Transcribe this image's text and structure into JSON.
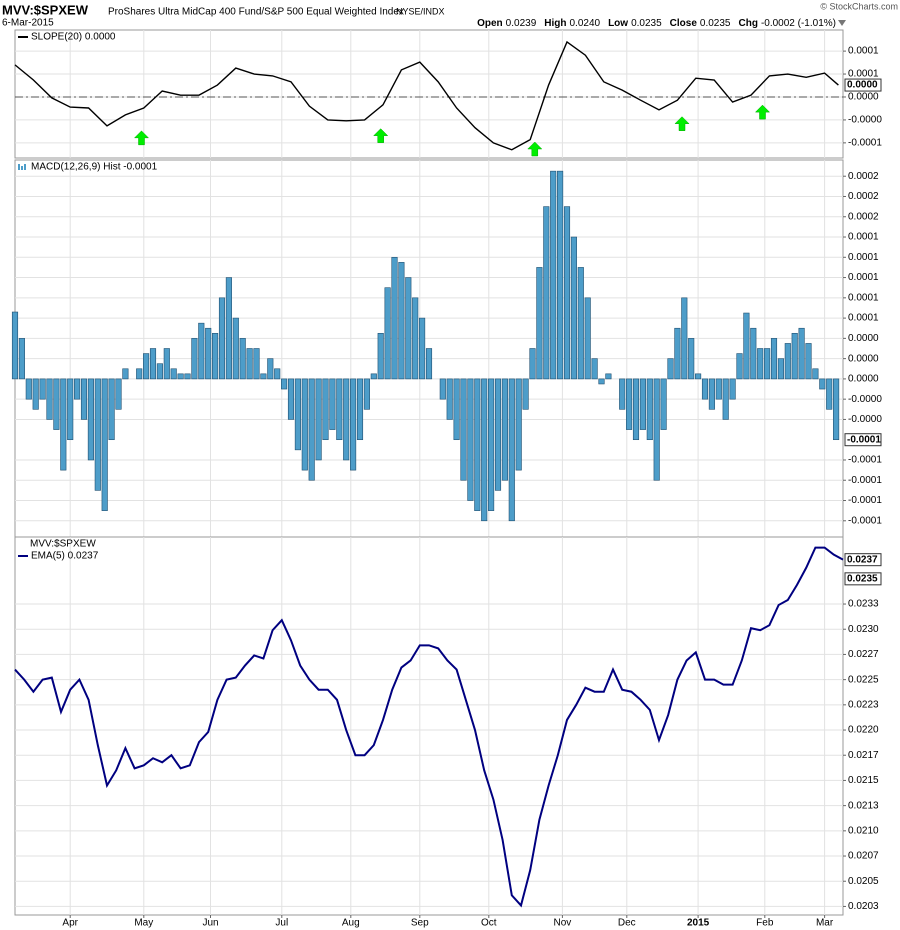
{
  "header": {
    "symbol": "MVV:$SPXEW",
    "description": "ProShares Ultra MidCap 400 Fund/S&P 500 Equal Weighted Index",
    "exchange": "NYSE/INDX",
    "date": "6-Mar-2015",
    "source": "© StockCharts.com",
    "stats": [
      {
        "label": "Open",
        "value": "0.0239"
      },
      {
        "label": "High",
        "value": "0.0240"
      },
      {
        "label": "Low",
        "value": "0.0235"
      },
      {
        "label": "Close",
        "value": "0.0235"
      },
      {
        "label": "Chg",
        "value": "-0.0002 (-1.01%)"
      }
    ]
  },
  "chart_data": [
    {
      "type": "line",
      "zero_line": true,
      "xlim": [
        0,
        360
      ],
      "ylim": [
        -0.000133,
        0.000146
      ],
      "yticks": [
        0.0001,
        {
          "value": 5e-05,
          "label": "0.0001"
        },
        {
          "value": 0,
          "label": "0.0000"
        },
        {
          "value": -5e-05,
          "label": "-0.0000"
        },
        {
          "value": -0.0001,
          "label": "-0.0001"
        }
      ],
      "series": [
        {
          "name": "SLOPE(20) 0.0000",
          "color": "#000000",
          "x": [
            0,
            8,
            16,
            24,
            32,
            40,
            48,
            56,
            64,
            72,
            80,
            88,
            96,
            104,
            112,
            120,
            128,
            136,
            144,
            152,
            160,
            168,
            176,
            184,
            192,
            200,
            208,
            216,
            224,
            232,
            240,
            248,
            256,
            264,
            272,
            280,
            288,
            296,
            304,
            312,
            320,
            328,
            336,
            344,
            352,
            358
          ],
          "values": [
            7e-05,
            3.7e-05,
            -2e-06,
            -2.2e-05,
            -2.4e-05,
            -6.3e-05,
            -3.9e-05,
            -2.4e-05,
            1.3e-05,
            4e-06,
            4e-06,
            2.6e-05,
            6.3e-05,
            5e-05,
            4.6e-05,
            3.3e-05,
            -2e-05,
            -5e-05,
            -5.2e-05,
            -5e-05,
            -1.7e-05,
            5.9e-05,
            7.6e-05,
            3.3e-05,
            -2.4e-05,
            -6.7e-05,
            -0.0001,
            -0.000115,
            -9.3e-05,
            2.6e-05,
            0.00012,
            9.1e-05,
            3.3e-05,
            1.5e-05,
            -7e-06,
            -2.8e-05,
            -7e-06,
            4.1e-05,
            3.7e-05,
            -1.1e-05,
            4e-06,
            4.6e-05,
            5e-05,
            4.3e-05,
            5.2e-05,
            2.6e-05
          ]
        }
      ],
      "signals": {
        "x": [
          55,
          159,
          226,
          290,
          325
        ],
        "color": "#00ee00"
      },
      "last_labels": [
        {
          "value": 2.6e-05,
          "label": "0.0000"
        }
      ]
    },
    {
      "type": "bar",
      "xlim": [
        0,
        360
      ],
      "ylim": [
        -0.000156,
        0.000216
      ],
      "yticks": [
        {
          "value": 0.0002,
          "label": "0.0002"
        },
        {
          "value": 0.00018,
          "label": "0.0002"
        },
        {
          "value": 0.00016,
          "label": "0.0002"
        },
        {
          "value": 0.00014,
          "label": "0.0001"
        },
        {
          "value": 0.00012,
          "label": "0.0001"
        },
        {
          "value": 0.0001,
          "label": "0.0001"
        },
        {
          "value": 8e-05,
          "label": "0.0001"
        },
        {
          "value": 6e-05,
          "label": "0.0001"
        },
        {
          "value": 4e-05,
          "label": "0.0000"
        },
        {
          "value": 2e-05,
          "label": "0.0000"
        },
        {
          "value": 0,
          "label": "0.0000"
        },
        {
          "value": -2e-05,
          "label": "-0.0000"
        },
        {
          "value": -4e-05,
          "label": "-0.0000"
        },
        {
          "value": -8e-05,
          "label": "-0.0001"
        },
        {
          "value": -0.0001,
          "label": "-0.0001"
        },
        {
          "value": -0.00012,
          "label": "-0.0001"
        },
        {
          "value": -0.00014,
          "label": "-0.0001"
        }
      ],
      "series": [
        {
          "name": "MACD(12,26,9) Hist -0.0001",
          "color": "#4d9dc9",
          "x": [
            0,
            3,
            6,
            9,
            12,
            15,
            18,
            21,
            24,
            27,
            30,
            33,
            36,
            39,
            42,
            45,
            48,
            51,
            54,
            57,
            60,
            63,
            66,
            69,
            72,
            75,
            78,
            81,
            84,
            87,
            90,
            93,
            96,
            99,
            102,
            105,
            108,
            111,
            114,
            117,
            120,
            123,
            126,
            129,
            132,
            135,
            138,
            141,
            144,
            147,
            150,
            153,
            156,
            159,
            162,
            165,
            168,
            171,
            174,
            177,
            180,
            183,
            186,
            189,
            192,
            195,
            198,
            201,
            204,
            207,
            210,
            213,
            216,
            219,
            222,
            225,
            228,
            231,
            234,
            237,
            240,
            243,
            246,
            249,
            252,
            255,
            258,
            261,
            264,
            267,
            270,
            273,
            276,
            279,
            282,
            285,
            288,
            291,
            294,
            297,
            300,
            303,
            306,
            309,
            312,
            315,
            318,
            321,
            324,
            327,
            330,
            333,
            336,
            339,
            342,
            345,
            348,
            351,
            354,
            357
          ],
          "values": [
            6.6e-05,
            4e-05,
            -2e-05,
            -3e-05,
            -2e-05,
            -4e-05,
            -5e-05,
            -9e-05,
            -6e-05,
            -2e-05,
            -4e-05,
            -8e-05,
            -0.00011,
            -0.00013,
            -6e-05,
            -3e-05,
            1e-05,
            0,
            1e-05,
            2.5e-05,
            3e-05,
            1.5e-05,
            3e-05,
            1e-05,
            5e-06,
            5e-06,
            4e-05,
            5.5e-05,
            5e-05,
            4.5e-05,
            8e-05,
            0.0001,
            6e-05,
            4e-05,
            3e-05,
            3e-05,
            5e-06,
            2e-05,
            1e-05,
            -1e-05,
            -4e-05,
            -7e-05,
            -9e-05,
            -0.0001,
            -8e-05,
            -6e-05,
            -5e-05,
            -6e-05,
            -8e-05,
            -9e-05,
            -6e-05,
            -3e-05,
            5e-06,
            4.5e-05,
            9e-05,
            0.00012,
            0.000115,
            0.0001,
            8e-05,
            6e-05,
            3e-05,
            0,
            -2e-05,
            -4e-05,
            -6e-05,
            -0.0001,
            -0.00012,
            -0.00013,
            -0.00014,
            -0.00013,
            -0.00011,
            -0.0001,
            -0.00014,
            -9e-05,
            -3e-05,
            3e-05,
            0.00011,
            0.00017,
            0.000205,
            0.000205,
            0.00017,
            0.00014,
            0.00011,
            8e-05,
            2e-05,
            -5e-06,
            5e-06,
            0,
            -3e-05,
            -5e-05,
            -6e-05,
            -5e-05,
            -6e-05,
            -0.0001,
            -5e-05,
            2e-05,
            5e-05,
            8e-05,
            4e-05,
            5e-06,
            -2e-05,
            -3e-05,
            -2e-05,
            -4e-05,
            -2e-05,
            2.5e-05,
            6.5e-05,
            5e-05,
            3e-05,
            3e-05,
            4e-05,
            2e-05,
            3.5e-05,
            4.5e-05,
            5e-05,
            3.5e-05,
            1e-05,
            -1e-05,
            -3e-05,
            -6e-05
          ]
        }
      ],
      "last_labels": [
        {
          "value": -6e-05,
          "label": "-0.0001"
        }
      ]
    },
    {
      "type": "line",
      "title": "MVV:$SPXEW",
      "xlim": [
        0,
        360
      ],
      "ylim": [
        0.020165,
        0.023915
      ],
      "yticks": [
        {
          "value": 0.02325,
          "label": "0.0233"
        },
        {
          "value": 0.023,
          "label": "0.0230"
        },
        {
          "value": 0.02275,
          "label": "0.0227"
        },
        0.0225,
        {
          "value": 0.02225,
          "label": "0.0223"
        },
        {
          "value": 0.022,
          "label": "0.0220"
        },
        {
          "value": 0.02175,
          "label": "0.0217"
        },
        0.0215,
        {
          "value": 0.02125,
          "label": "0.0213"
        },
        {
          "value": 0.021,
          "label": "0.0210"
        },
        {
          "value": 0.02075,
          "label": "0.0207"
        },
        0.0205,
        {
          "value": 0.02025,
          "label": "0.0203"
        }
      ],
      "xticks": [
        {
          "value": 24,
          "label": "Apr"
        },
        {
          "value": 56,
          "label": "May"
        },
        {
          "value": 85,
          "label": "Jun"
        },
        {
          "value": 116,
          "label": "Jul"
        },
        {
          "value": 146,
          "label": "Aug"
        },
        {
          "value": 176,
          "label": "Sep"
        },
        {
          "value": 206,
          "label": "Oct"
        },
        {
          "value": 238,
          "label": "Nov"
        },
        {
          "value": 266,
          "label": "Dec"
        },
        {
          "value": 297,
          "label": "2015"
        },
        {
          "value": 326,
          "label": "Feb"
        },
        {
          "value": 352,
          "label": "Mar"
        }
      ],
      "series": [
        {
          "name": "EMA(5) 0.0237",
          "color": "#000080",
          "x": [
            0,
            4,
            8,
            12,
            16,
            20,
            24,
            28,
            32,
            36,
            40,
            44,
            48,
            52,
            56,
            60,
            64,
            68,
            72,
            76,
            80,
            84,
            88,
            92,
            96,
            100,
            104,
            108,
            112,
            116,
            120,
            124,
            128,
            132,
            136,
            140,
            144,
            148,
            152,
            156,
            160,
            164,
            168,
            172,
            176,
            180,
            184,
            188,
            192,
            196,
            200,
            204,
            208,
            212,
            216,
            220,
            224,
            228,
            232,
            236,
            240,
            244,
            248,
            252,
            256,
            260,
            264,
            268,
            272,
            276,
            280,
            284,
            288,
            292,
            296,
            300,
            304,
            308,
            312,
            316,
            320,
            324,
            328,
            332,
            336,
            340,
            344,
            348,
            352,
            356,
            360
          ],
          "values": [
            0.0226,
            0.0225,
            0.02238,
            0.0225,
            0.02252,
            0.02218,
            0.0224,
            0.0225,
            0.0223,
            0.02185,
            0.02145,
            0.0216,
            0.02182,
            0.02162,
            0.02165,
            0.02172,
            0.02168,
            0.02175,
            0.02162,
            0.02165,
            0.02188,
            0.02198,
            0.0223,
            0.0225,
            0.02252,
            0.02264,
            0.02274,
            0.02271,
            0.02299,
            0.02309,
            0.02289,
            0.02264,
            0.0225,
            0.0224,
            0.0224,
            0.0223,
            0.022,
            0.02175,
            0.02175,
            0.02185,
            0.0221,
            0.0224,
            0.02262,
            0.02269,
            0.02284,
            0.02284,
            0.02281,
            0.02269,
            0.0226,
            0.0223,
            0.022,
            0.0216,
            0.02131,
            0.02091,
            0.02036,
            0.02026,
            0.02061,
            0.02111,
            0.02145,
            0.02175,
            0.0221,
            0.02225,
            0.02242,
            0.02238,
            0.02238,
            0.0226,
            0.0224,
            0.02238,
            0.0223,
            0.0222,
            0.0219,
            0.02215,
            0.0225,
            0.02269,
            0.02277,
            0.0225,
            0.0225,
            0.02245,
            0.02245,
            0.02269,
            0.02301,
            0.02299,
            0.02304,
            0.02324,
            0.02329,
            0.02344,
            0.02361,
            0.02381,
            0.02381,
            0.02374,
            0.02369
          ]
        }
      ],
      "last_labels": [
        {
          "value": 0.02369,
          "label": "0.0237"
        },
        {
          "value": 0.0235,
          "label": "0.0235"
        }
      ]
    }
  ]
}
